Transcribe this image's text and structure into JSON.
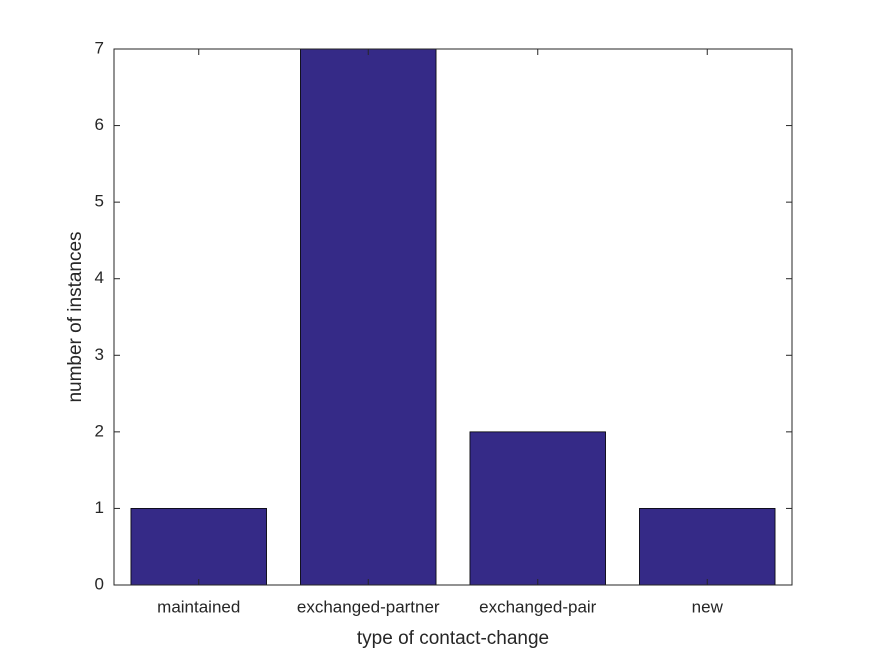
{
  "chart_data": {
    "type": "bar",
    "xlabel": "type of contact-change",
    "ylabel": "number of instances",
    "categories": [
      "maintained",
      "exchanged-partner",
      "exchanged-pair",
      "new"
    ],
    "values": [
      1,
      7,
      2,
      1
    ],
    "color": "#352a87",
    "ylim": [
      0,
      7
    ],
    "yticks": [
      0,
      1,
      2,
      3,
      4,
      5,
      6,
      7
    ],
    "grid": false
  }
}
